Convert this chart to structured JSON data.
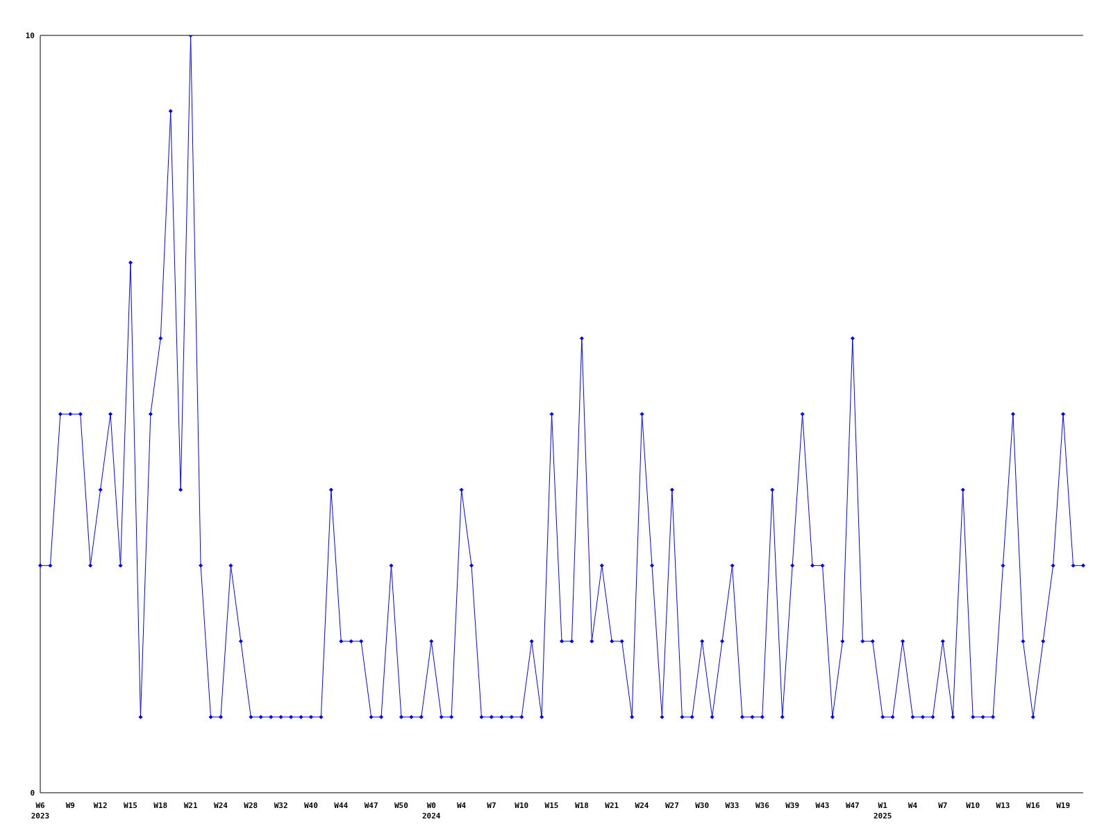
{
  "chart_data": {
    "type": "line",
    "categories": [
      "W6\n2023",
      null,
      null,
      "W9",
      null,
      null,
      "W12",
      null,
      null,
      "W15",
      null,
      null,
      "W18",
      null,
      null,
      "W21",
      null,
      null,
      "W24",
      null,
      null,
      "W28",
      null,
      null,
      "W32",
      null,
      null,
      "W40",
      null,
      null,
      "W44",
      null,
      null,
      "W47",
      null,
      null,
      "W50",
      null,
      null,
      "W0\n2024",
      null,
      null,
      "W4",
      null,
      null,
      "W7",
      null,
      null,
      "W10",
      null,
      null,
      "W15",
      null,
      null,
      "W18",
      null,
      null,
      "W21",
      null,
      null,
      "W24",
      null,
      null,
      "W27",
      null,
      null,
      "W30",
      null,
      null,
      "W33",
      null,
      null,
      "W36",
      null,
      null,
      "W39",
      null,
      null,
      "W43",
      null,
      null,
      "W47",
      null,
      null,
      "W1\n2025",
      null,
      null,
      "W4",
      null,
      null,
      "W7",
      null,
      null,
      "W10",
      null,
      null,
      "W13",
      null,
      null,
      "W16",
      null,
      null,
      "W19",
      null,
      null
    ],
    "series": [
      {
        "color": "#0000ff",
        "values": [
          3,
          3,
          5,
          5,
          5,
          3,
          4,
          5,
          3,
          7,
          1,
          5,
          6,
          9,
          4,
          10,
          3,
          1,
          1,
          3,
          2,
          1,
          1,
          1,
          1,
          1,
          1,
          1,
          1,
          4,
          2,
          2,
          2,
          1,
          1,
          3,
          1,
          1,
          1,
          2,
          1,
          1,
          4,
          3,
          1,
          1,
          1,
          1,
          1,
          2,
          1,
          5,
          2,
          2,
          6,
          2,
          3,
          2,
          2,
          1,
          5,
          3,
          1,
          4,
          1,
          1,
          2,
          1,
          2,
          3,
          1,
          1,
          1,
          4,
          1,
          3,
          5,
          3,
          3,
          1,
          2,
          6,
          2,
          2,
          1,
          1,
          2,
          1,
          1,
          1,
          2,
          1,
          4,
          1,
          1,
          1,
          3,
          5,
          2,
          1,
          2,
          3,
          5,
          3,
          3
        ]
      }
    ],
    "ylim": [
      0,
      10
    ],
    "yticks": [
      0,
      10
    ],
    "marker": "diamond",
    "line_style": "solid"
  }
}
